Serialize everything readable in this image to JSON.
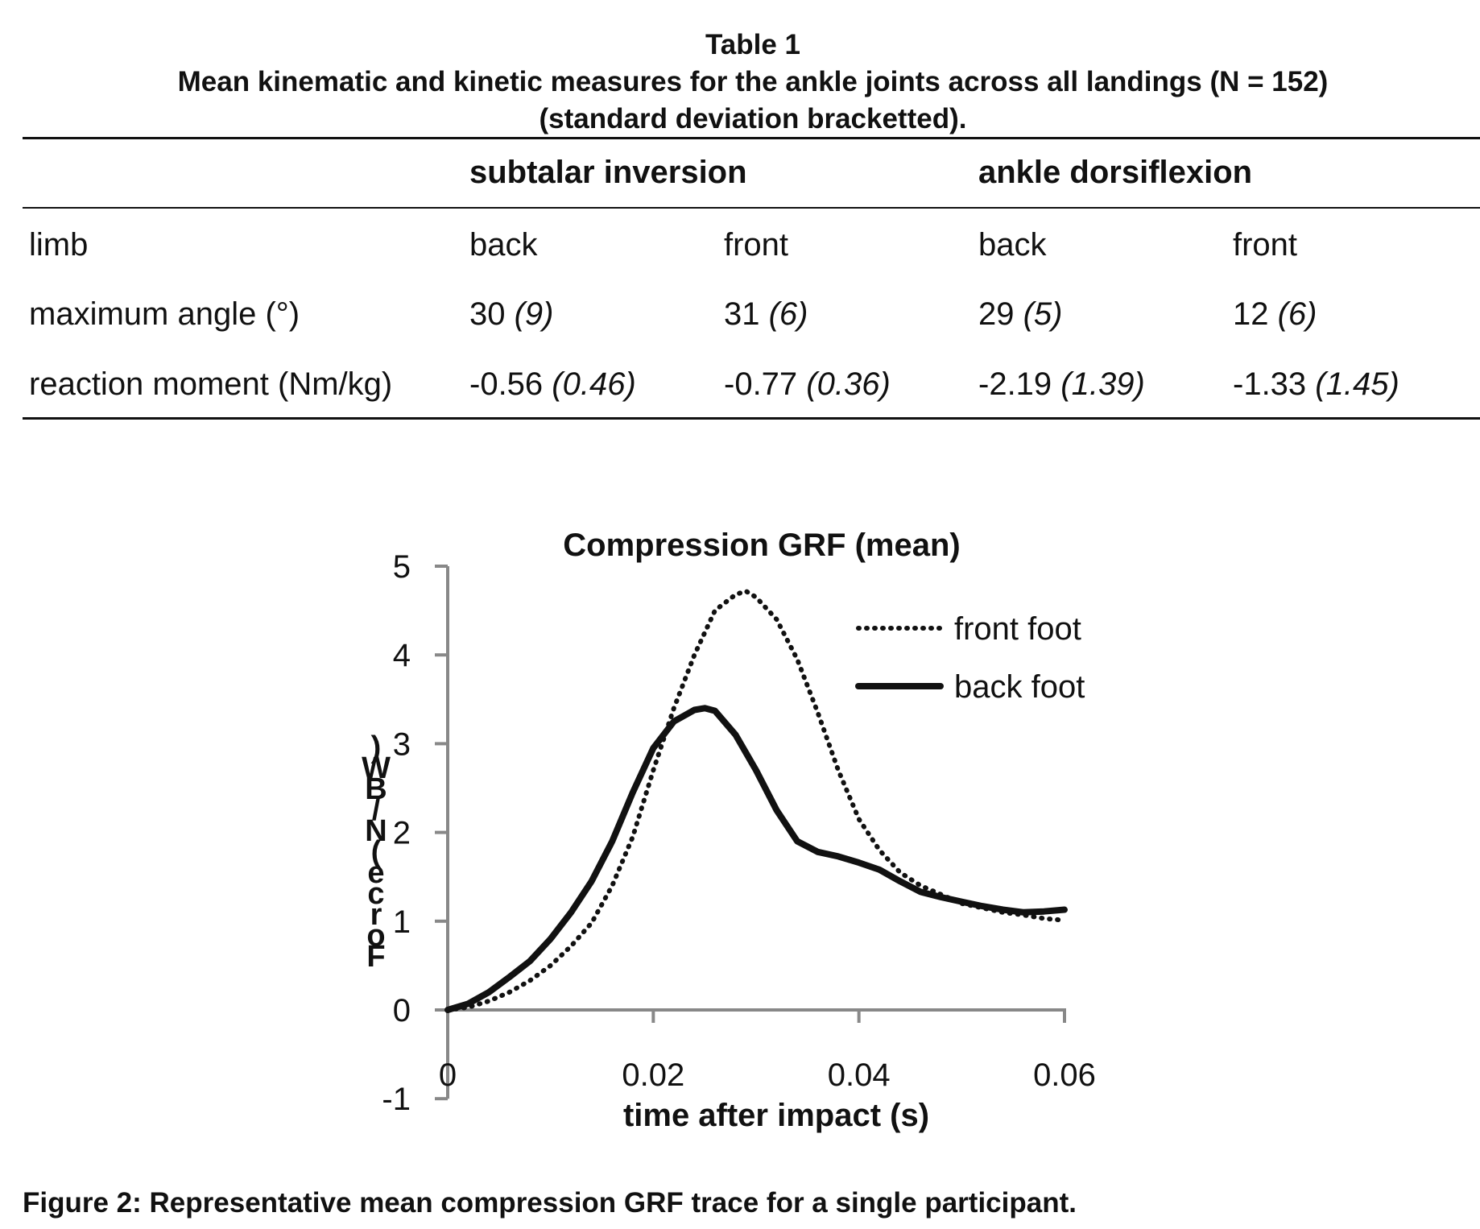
{
  "table": {
    "number": "Table 1",
    "title_line1": "Mean kinematic and kinetic measures for the ankle joints across all landings (N = 152)",
    "title_line2": "(standard deviation bracketted).",
    "group_headers": [
      "subtalar inversion",
      "ankle dorsiflexion"
    ],
    "rows": [
      {
        "label": "limb",
        "cells": [
          {
            "value": "back",
            "sd": ""
          },
          {
            "value": "front",
            "sd": ""
          },
          {
            "value": "back",
            "sd": ""
          },
          {
            "value": "front",
            "sd": ""
          }
        ]
      },
      {
        "label": "maximum angle (°)",
        "cells": [
          {
            "value": "30 ",
            "sd": "(9)"
          },
          {
            "value": "31 ",
            "sd": "(6)"
          },
          {
            "value": "29 ",
            "sd": "(5)"
          },
          {
            "value": "12 ",
            "sd": "(6)"
          }
        ]
      },
      {
        "label": "reaction moment (Nm/kg)",
        "cells": [
          {
            "value": "-0.56 ",
            "sd": "(0.46)"
          },
          {
            "value": "-0.77 ",
            "sd": "(0.36)"
          },
          {
            "value": "-2.19 ",
            "sd": "(1.39)"
          },
          {
            "value": "-1.33 ",
            "sd": "(1.45)"
          }
        ]
      }
    ]
  },
  "chart_data": {
    "type": "line",
    "title": "Compression GRF (mean)",
    "xlabel": "time after impact (s)",
    "ylabel": "Force (N/BW)",
    "xlim": [
      0,
      0.06
    ],
    "ylim": [
      -1,
      5
    ],
    "xticks": [
      0,
      0.02,
      0.04,
      0.06
    ],
    "xtick_labels": [
      "0",
      "0.02",
      "0.04",
      "0.06"
    ],
    "yticks": [
      -1,
      0,
      1,
      2,
      3,
      4,
      5
    ],
    "ytick_labels": [
      "-1",
      "0",
      "1",
      "2",
      "3",
      "4",
      "5"
    ],
    "legend": "top-right",
    "grid": false,
    "series": [
      {
        "name": "front foot",
        "style": "dotted",
        "color": "#111111",
        "x": [
          0,
          0.002,
          0.004,
          0.006,
          0.008,
          0.01,
          0.012,
          0.014,
          0.016,
          0.018,
          0.02,
          0.022,
          0.024,
          0.026,
          0.028,
          0.029,
          0.03,
          0.032,
          0.034,
          0.036,
          0.038,
          0.04,
          0.042,
          0.044,
          0.046,
          0.048,
          0.05,
          0.052,
          0.054,
          0.056,
          0.058,
          0.06
        ],
        "y": [
          0,
          0.03,
          0.1,
          0.2,
          0.33,
          0.5,
          0.72,
          0.98,
          1.4,
          1.95,
          2.7,
          3.4,
          4.0,
          4.5,
          4.68,
          4.72,
          4.65,
          4.4,
          3.95,
          3.35,
          2.7,
          2.15,
          1.8,
          1.55,
          1.4,
          1.3,
          1.2,
          1.15,
          1.1,
          1.07,
          1.03,
          1.01
        ]
      },
      {
        "name": "back foot",
        "style": "solid",
        "color": "#111111",
        "x": [
          0,
          0.002,
          0.004,
          0.006,
          0.008,
          0.01,
          0.012,
          0.014,
          0.016,
          0.018,
          0.02,
          0.022,
          0.024,
          0.025,
          0.026,
          0.028,
          0.03,
          0.032,
          0.034,
          0.036,
          0.038,
          0.04,
          0.042,
          0.044,
          0.046,
          0.048,
          0.05,
          0.052,
          0.054,
          0.056,
          0.058,
          0.06
        ],
        "y": [
          0,
          0.07,
          0.2,
          0.37,
          0.55,
          0.8,
          1.1,
          1.45,
          1.9,
          2.45,
          2.95,
          3.25,
          3.38,
          3.4,
          3.37,
          3.1,
          2.7,
          2.25,
          1.9,
          1.78,
          1.73,
          1.66,
          1.58,
          1.45,
          1.33,
          1.27,
          1.22,
          1.17,
          1.13,
          1.1,
          1.11,
          1.13
        ]
      }
    ]
  },
  "caption": "Figure 2: Representative mean compression GRF trace for a single participant."
}
